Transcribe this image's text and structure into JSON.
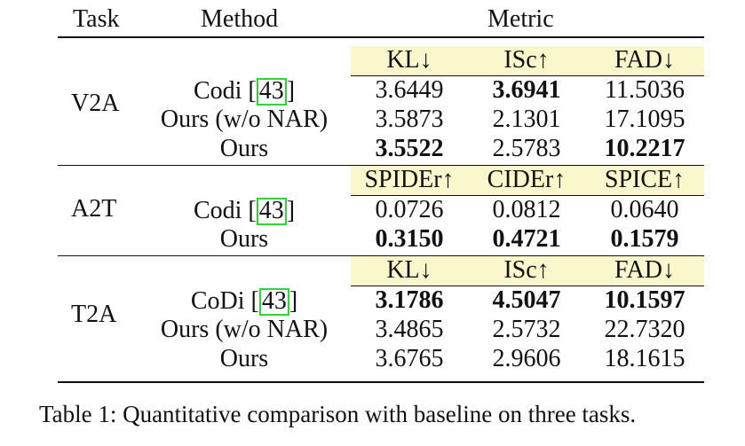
{
  "header": {
    "task": "Task",
    "method": "Method",
    "metric": "Metric"
  },
  "metrics": {
    "v2a": [
      "KL↓",
      "ISc↑",
      "FAD↓"
    ],
    "a2t": [
      "SPIDEr↑",
      "CIDEr↑",
      "SPICE↑"
    ],
    "t2a": [
      "KL↓",
      "ISc↑",
      "FAD↓"
    ]
  },
  "groups": {
    "v2a": {
      "task": "V2A",
      "rows": [
        {
          "method": "Codi",
          "cite": "43",
          "values": [
            "3.6449",
            "3.6941",
            "11.5036"
          ]
        },
        {
          "method": "Ours (w/o NAR)",
          "values": [
            "3.5873",
            "2.1301",
            "17.1095"
          ]
        },
        {
          "method": "Ours",
          "values": [
            "3.5522",
            "2.5783",
            "10.2217"
          ]
        }
      ]
    },
    "a2t": {
      "task": "A2T",
      "rows": [
        {
          "method": "Codi",
          "cite": "43",
          "values": [
            "0.0726",
            "0.0812",
            "0.0640"
          ]
        },
        {
          "method": "Ours",
          "values": [
            "0.3150",
            "0.4721",
            "0.1579"
          ]
        }
      ]
    },
    "t2a": {
      "task": "T2A",
      "rows": [
        {
          "method": "CoDi",
          "cite": "43",
          "values": [
            "3.1786",
            "4.5047",
            "10.1597"
          ]
        },
        {
          "method": "Ours (w/o NAR)",
          "values": [
            "3.4865",
            "2.5732",
            "22.7320"
          ]
        },
        {
          "method": "Ours",
          "values": [
            "3.6765",
            "2.9606",
            "18.1615"
          ]
        }
      ]
    }
  },
  "caption": "Table 1: Quantitative comparison with baseline on three tasks.",
  "colors": {
    "highlight_band": "#fbf7cc",
    "citation_box": "#2fd43a"
  }
}
